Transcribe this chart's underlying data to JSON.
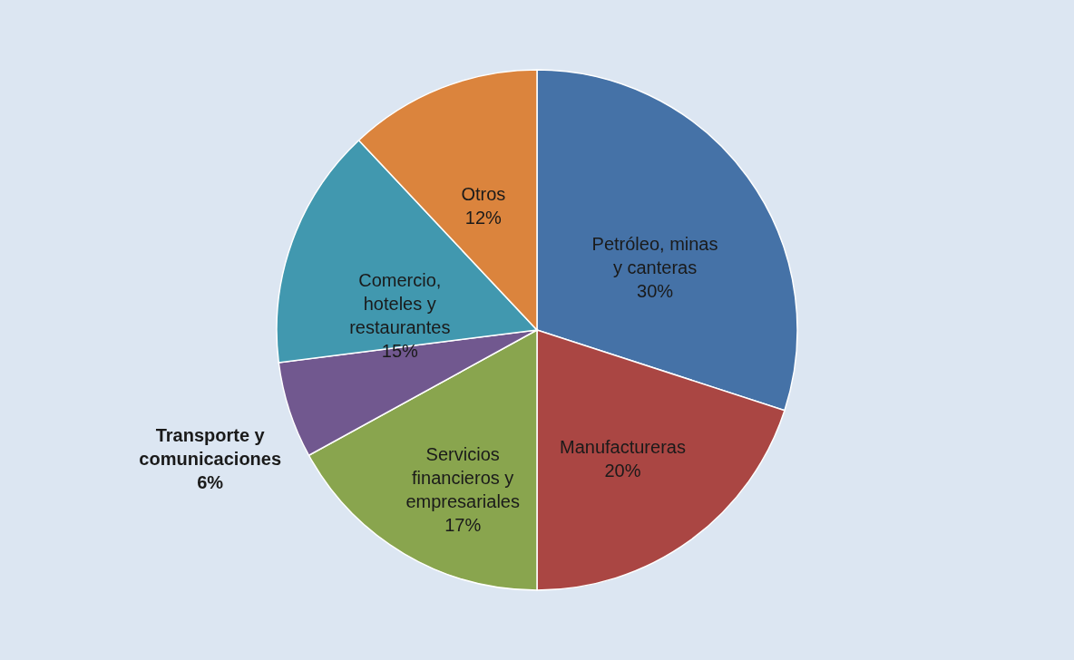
{
  "chart_data": {
    "type": "pie",
    "categories": [
      "Petróleo, minas y canteras",
      "Manufactureras",
      "Servicios financieros y empresariales",
      "Transporte y comunicaciones",
      "Comercio, hoteles y restaurantes",
      "Otros"
    ],
    "values": [
      30,
      20,
      17,
      6,
      15,
      12
    ],
    "colors": [
      "#4572a7",
      "#aa4643",
      "#89a54e",
      "#71588f",
      "#4198af",
      "#db843d"
    ],
    "value_labels": [
      "30%",
      "20%",
      "17%",
      "6%",
      "15%",
      "12%"
    ]
  }
}
